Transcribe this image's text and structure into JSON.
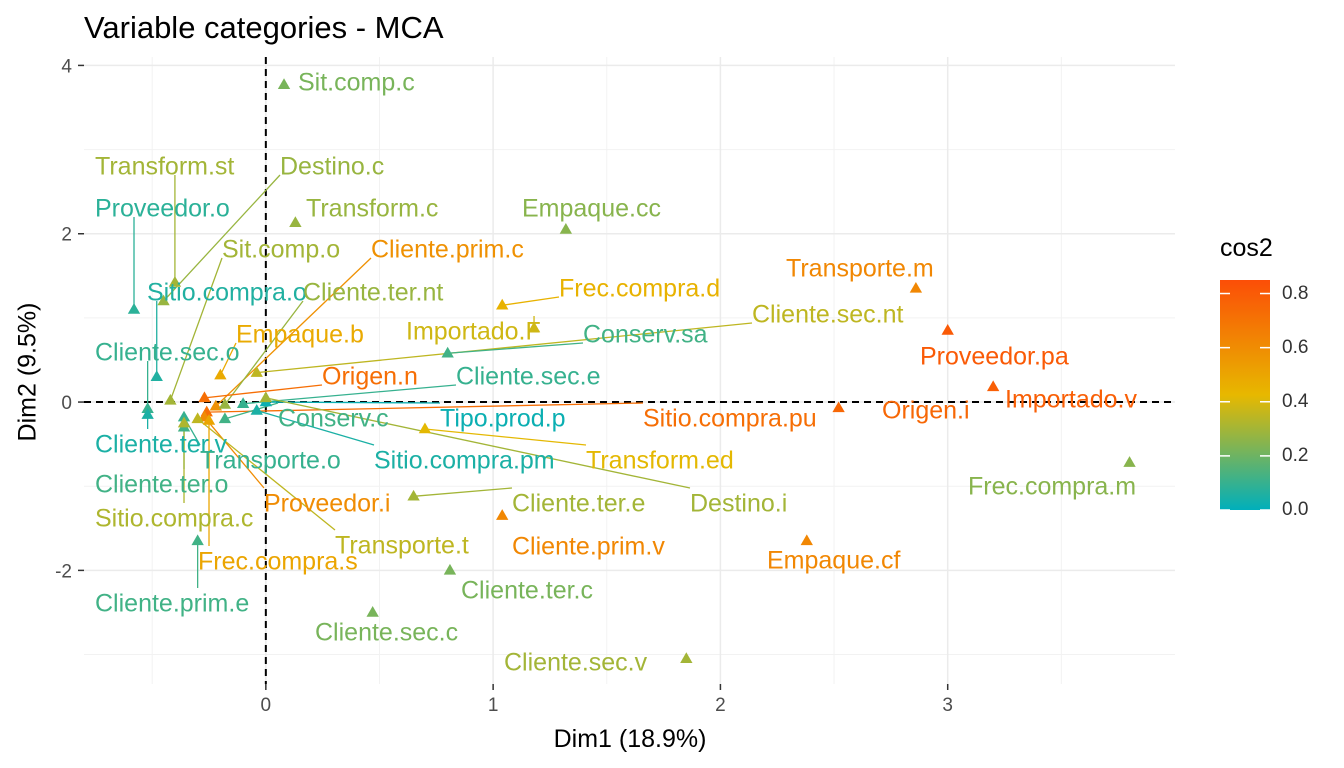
{
  "chart_data": {
    "type": "scatter",
    "title": "Variable categories - MCA",
    "xlabel": "Dim1 (18.9%)",
    "ylabel": "Dim2 (9.5%)",
    "xlim": [
      -0.8,
      4.0
    ],
    "ylim": [
      -3.35,
      4.1
    ],
    "x_ticks": [
      0,
      1,
      2,
      3
    ],
    "y_ticks": [
      -2,
      0,
      2,
      4
    ],
    "grid": true,
    "reference_lines": [
      {
        "axis": "x",
        "value": 0,
        "style": "dashed"
      },
      {
        "axis": "y",
        "value": 0,
        "style": "dashed"
      }
    ],
    "legend": {
      "title": "cos2",
      "position": "right",
      "ticks": [
        "0.0",
        "0.2",
        "0.4",
        "0.6",
        "0.8"
      ],
      "tick_values": [
        0,
        0.2,
        0.4,
        0.6,
        0.8
      ],
      "range": [
        0,
        0.85
      ],
      "colors": [
        "#00AFBB",
        "#E7B800",
        "#FC4E07"
      ]
    },
    "points": [
      {
        "label": "Sit.comp.c",
        "x": 0.08,
        "y": 3.77,
        "cos2": 0.22
      },
      {
        "label": "Transform.st",
        "x": -0.4,
        "y": 1.42,
        "cos2": 0.3
      },
      {
        "label": "Destino.c",
        "x": -0.45,
        "y": 1.2,
        "cos2": 0.28
      },
      {
        "label": "Transform.c",
        "x": 0.13,
        "y": 2.13,
        "cos2": 0.28
      },
      {
        "label": "Proveedor.o",
        "x": -0.58,
        "y": 1.1,
        "cos2": 0.08
      },
      {
        "label": "Empaque.cc",
        "x": 1.32,
        "y": 2.05,
        "cos2": 0.25
      },
      {
        "label": "Sit.comp.o",
        "x": -0.42,
        "y": 0.02,
        "cos2": 0.3
      },
      {
        "label": "Cliente.prim.c",
        "x": -0.22,
        "y": -0.05,
        "cos2": 0.58
      },
      {
        "label": "Sitio.compra.o",
        "x": -0.48,
        "y": 0.3,
        "cos2": 0.06
      },
      {
        "label": "Cliente.ter.nt",
        "x": -0.18,
        "y": -0.03,
        "cos2": 0.28
      },
      {
        "label": "Transporte.m",
        "x": 2.86,
        "y": 1.35,
        "cos2": 0.62
      },
      {
        "label": "Frec.compra.d",
        "x": 1.04,
        "y": 1.15,
        "cos2": 0.45
      },
      {
        "label": "Cliente.sec.nt",
        "x": -0.04,
        "y": 0.35,
        "cos2": 0.35
      },
      {
        "label": "Importado.F",
        "x": 1.18,
        "y": 0.88,
        "cos2": 0.38
      },
      {
        "label": "Empaque.b",
        "x": -0.2,
        "y": 0.32,
        "cos2": 0.48
      },
      {
        "label": "Conserv.sa",
        "x": 0.8,
        "y": 0.58,
        "cos2": 0.12
      },
      {
        "label": "Cliente.sec.o",
        "x": -0.52,
        "y": -0.08,
        "cos2": 0.1
      },
      {
        "label": "Proveedor.pa",
        "x": 3.0,
        "y": 0.85,
        "cos2": 0.8
      },
      {
        "label": "Origen.n",
        "x": -0.27,
        "y": 0.05,
        "cos2": 0.72
      },
      {
        "label": "Cliente.sec.e",
        "x": -0.1,
        "y": -0.02,
        "cos2": 0.1
      },
      {
        "label": "Importado.v",
        "x": 3.2,
        "y": 0.18,
        "cos2": 0.78
      },
      {
        "label": "Origen.i",
        "x": 2.52,
        "y": -0.07,
        "cos2": 0.75
      },
      {
        "label": "Sitio.compra.pu",
        "x": -0.26,
        "y": -0.12,
        "cos2": 0.72
      },
      {
        "label": "Conserv.c",
        "x": -0.18,
        "y": -0.2,
        "cos2": 0.12
      },
      {
        "label": "Tipo.prod.p",
        "x": 0.0,
        "y": 0.0,
        "cos2": 0.02
      },
      {
        "label": "Cliente.ter.v",
        "x": -0.52,
        "y": -0.15,
        "cos2": 0.05
      },
      {
        "label": "Transporte.o",
        "x": -0.36,
        "y": -0.18,
        "cos2": 0.1
      },
      {
        "label": "Sitio.compra.pm",
        "x": -0.04,
        "y": -0.1,
        "cos2": 0.05
      },
      {
        "label": "Transform.ed",
        "x": 0.7,
        "y": -0.32,
        "cos2": 0.42
      },
      {
        "label": "Frec.compra.m",
        "x": 3.8,
        "y": -0.72,
        "cos2": 0.25
      },
      {
        "label": "Cliente.ter.o",
        "x": -0.36,
        "y": -0.3,
        "cos2": 0.12
      },
      {
        "label": "Cliente.ter.e",
        "x": 0.65,
        "y": -1.12,
        "cos2": 0.3
      },
      {
        "label": "Destino.i",
        "x": 0.0,
        "y": 0.05,
        "cos2": 0.3
      },
      {
        "label": "Proveedor.i",
        "x": -0.27,
        "y": -0.18,
        "cos2": 0.6
      },
      {
        "label": "Sitio.compra.c",
        "x": -0.36,
        "y": -0.25,
        "cos2": 0.32
      },
      {
        "label": "Cliente.prim.v",
        "x": 1.04,
        "y": -1.35,
        "cos2": 0.62
      },
      {
        "label": "Empaque.cf",
        "x": 2.38,
        "y": -1.65,
        "cos2": 0.62
      },
      {
        "label": "Transporte.t",
        "x": -0.3,
        "y": -0.2,
        "cos2": 0.35
      },
      {
        "label": "Frec.compra.s",
        "x": -0.25,
        "y": -0.22,
        "cos2": 0.5
      },
      {
        "label": "Cliente.prim.e",
        "x": -0.3,
        "y": -1.65,
        "cos2": 0.12
      },
      {
        "label": "Cliente.ter.c",
        "x": 0.81,
        "y": -2.0,
        "cos2": 0.22
      },
      {
        "label": "Cliente.sec.c",
        "x": 0.47,
        "y": -2.5,
        "cos2": 0.22
      },
      {
        "label": "Cliente.sec.v",
        "x": 1.85,
        "y": -3.05,
        "cos2": 0.3
      }
    ]
  }
}
